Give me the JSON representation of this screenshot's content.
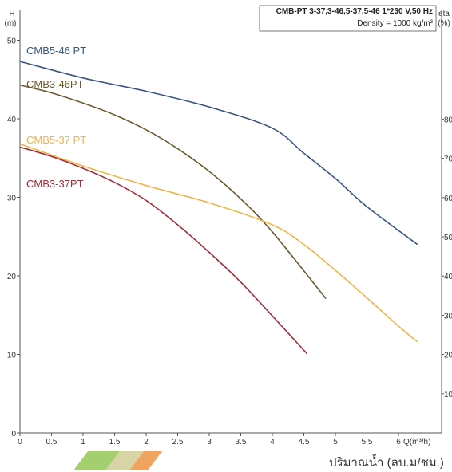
{
  "header": {
    "model_line": "CMB-PT 3-37,3-46,5-37,5-46  1*230 V,50 Hz",
    "density": "Density = 1000 kg/m³"
  },
  "footer": {
    "flow_label": "ปริมาณน้ำ (ลบ.ม/ชม.)"
  },
  "colors": {
    "swatch_left": "#a4cf6e",
    "swatch_mid": "#d9d4a6",
    "swatch_right": "#f0a35e"
  },
  "chart_data": {
    "type": "line",
    "title": "",
    "xlabel": "Q(m³/h)",
    "ylabel": "H (m)",
    "y2label": "eta (%)",
    "xlim": [
      0,
      6.5
    ],
    "ylim": [
      0,
      50
    ],
    "y2lim": [
      0,
      85
    ],
    "x_ticks": [
      "0",
      "0.5",
      "1",
      "1.5",
      "2",
      "2.5",
      "3",
      "3.5",
      "4",
      "4.5",
      "5",
      "5.5",
      "6"
    ],
    "y_ticks": [
      "0",
      "10",
      "20",
      "30",
      "40",
      "50"
    ],
    "y2_ticks": [
      "10",
      "20",
      "30",
      "40",
      "50",
      "60",
      "70",
      "80"
    ],
    "grid": false,
    "series": [
      {
        "name": "CMB5-46 PT",
        "color": "#3a5580",
        "x": [
          0,
          1,
          2,
          3,
          4,
          4.5,
          5,
          5.5,
          6.3
        ],
        "y": [
          47.3,
          45.2,
          43.5,
          41.5,
          38.8,
          35.6,
          32.4,
          28.8,
          24.0
        ]
      },
      {
        "name": "CMB3-46PT",
        "color": "#6b5a2e",
        "x": [
          0,
          0.5,
          1,
          1.5,
          2,
          2.5,
          3,
          3.5,
          4,
          4.85
        ],
        "y": [
          44.3,
          43.3,
          42.0,
          40.5,
          38.6,
          36.2,
          33.3,
          29.8,
          25.6,
          17.1
        ]
      },
      {
        "name": "CMB5-37 PT",
        "color": "#f0b34a",
        "x": [
          0,
          1,
          2,
          3,
          4,
          4.5,
          5,
          5.5,
          6,
          6.3
        ],
        "y": [
          36.8,
          34.0,
          31.5,
          29.3,
          26.5,
          24.0,
          20.7,
          17.2,
          13.6,
          11.6
        ]
      },
      {
        "name": "CMB3-37PT",
        "color": "#9e2f3c",
        "x": [
          0,
          0.5,
          1,
          1.5,
          2,
          2.5,
          3,
          3.5,
          4,
          4.55
        ],
        "y": [
          36.4,
          35.2,
          33.7,
          31.9,
          29.6,
          26.5,
          23.0,
          19.2,
          14.9,
          10.1
        ]
      }
    ]
  }
}
